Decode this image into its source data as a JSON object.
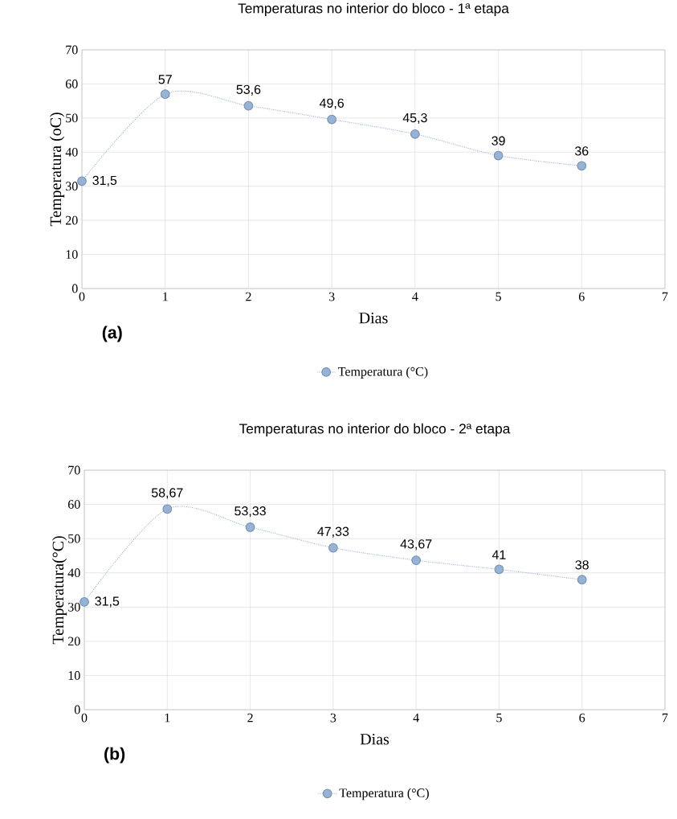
{
  "chart_data": [
    {
      "type": "line",
      "title": "Temperaturas no interior do bloco - 1ª etapa",
      "xlabel": "Dias",
      "ylabel": "Temperatura (oC)",
      "x": [
        0,
        1,
        2,
        3,
        4,
        5,
        6
      ],
      "series": [
        {
          "name": "Temperatura (°C)",
          "color": "#95b3d7",
          "values": [
            31.5,
            57,
            53.6,
            49.6,
            45.3,
            39,
            36
          ],
          "value_labels": [
            "31,5",
            "57",
            "53,6",
            "49,6",
            "45,3",
            "39",
            "36"
          ]
        }
      ],
      "xlim": [
        0,
        7
      ],
      "ylim": [
        0,
        70
      ],
      "xticks": [
        0,
        1,
        2,
        3,
        4,
        5,
        6,
        7
      ],
      "yticks": [
        0,
        10,
        20,
        30,
        40,
        50,
        60,
        70
      ],
      "grid": true,
      "legend": "bottom",
      "marker": "circle",
      "line_style": "dotted",
      "annotations": [
        "(a)"
      ]
    },
    {
      "type": "line",
      "title": "Temperaturas no interior do bloco - 2ª etapa",
      "xlabel": "Dias",
      "ylabel": "Temperatura(°C)",
      "x": [
        0,
        1,
        2,
        3,
        4,
        5,
        6
      ],
      "series": [
        {
          "name": "Temperatura (°C)",
          "color": "#95b3d7",
          "values": [
            31.5,
            58.67,
            53.33,
            47.33,
            43.67,
            41,
            38
          ],
          "value_labels": [
            "31,5",
            "58,67",
            "53,33",
            "47,33",
            "43,67",
            "41",
            "38"
          ]
        }
      ],
      "xlim": [
        0,
        7
      ],
      "ylim": [
        0,
        70
      ],
      "xticks": [
        0,
        1,
        2,
        3,
        4,
        5,
        6,
        7
      ],
      "yticks": [
        0,
        10,
        20,
        30,
        40,
        50,
        60,
        70
      ],
      "grid": true,
      "legend": "bottom",
      "marker": "circle",
      "line_style": "dotted",
      "annotations": [
        "(b)"
      ]
    }
  ]
}
